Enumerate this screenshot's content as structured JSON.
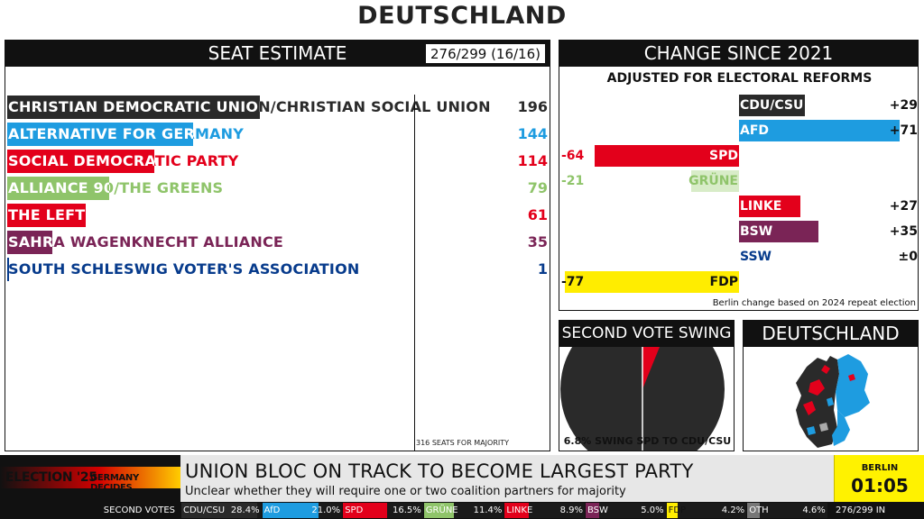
{
  "title": "DEUTSCHLAND",
  "seat_estimate": {
    "header": "SEAT ESTIMATE",
    "counter": "276/299 (16/16)",
    "majority_label": "316 SEATS FOR MAJORITY",
    "majority_seats": 316,
    "parties": [
      {
        "name": "CHRISTIAN DEMOCRATIC UNION/CHRISTIAN SOCIAL UNION",
        "seats": 196,
        "color": "#2a2a2a",
        "text_color": "#2a2a2a"
      },
      {
        "name": "ALTERNATIVE FOR GERMANY",
        "seats": 144,
        "color": "#1e9ce0",
        "text_color": "#1e9ce0"
      },
      {
        "name": "SOCIAL DEMOCRATIC PARTY",
        "seats": 114,
        "color": "#e3001b",
        "text_color": "#e3001b"
      },
      {
        "name": "ALLIANCE 90/THE GREENS",
        "seats": 79,
        "color": "#8fc46a",
        "text_color": "#8fc46a"
      },
      {
        "name": "THE LEFT",
        "seats": 61,
        "color": "#e3001b",
        "text_color": "#e3001b"
      },
      {
        "name": "SAHRA WAGENKNECHT ALLIANCE",
        "seats": 35,
        "color": "#7a2456",
        "text_color": "#7a2456"
      },
      {
        "name": "SOUTH SCHLESWIG VOTER'S ASSOCIATION",
        "seats": 1,
        "color": "#073b8c",
        "text_color": "#073b8c"
      }
    ]
  },
  "change": {
    "header": "CHANGE SINCE 2021",
    "subtitle": "ADJUSTED FOR ELECTORAL REFORMS",
    "note": "Berlin change based on 2024 repeat election",
    "parties": [
      {
        "name": "CDU/CSU",
        "value": 29,
        "label": "+29",
        "color": "#2a2a2a"
      },
      {
        "name": "AFD",
        "value": 71,
        "label": "+71",
        "color": "#1e9ce0"
      },
      {
        "name": "SPD",
        "value": -64,
        "label": "-64",
        "color": "#e3001b"
      },
      {
        "name": "GRÜNE",
        "value": -21,
        "label": "-21",
        "color": "#8fc46a"
      },
      {
        "name": "LINKE",
        "value": 27,
        "label": "+27",
        "color": "#e3001b"
      },
      {
        "name": "BSW",
        "value": 35,
        "label": "+35",
        "color": "#7a2456"
      },
      {
        "name": "SSW",
        "value": 0,
        "label": "±0",
        "color": "#073b8c"
      },
      {
        "name": "FDP",
        "value": -77,
        "label": "-77",
        "color": "#ffed00"
      }
    ]
  },
  "swing": {
    "header": "SECOND VOTE SWING",
    "caption": "6.8% SWING SPD TO CDU/CSU",
    "swing_pct": 6.8
  },
  "map": {
    "header": "DEUTSCHLAND"
  },
  "ticker": {
    "brand_election": "ELECTION '25",
    "brand_decides": "GERMANY DECIDES",
    "headline": "UNION BLOC ON TRACK TO BECOME LARGEST PARTY",
    "subheadline": "Unclear whether they will require one or two coalition partners for majority",
    "clock_city": "BERLIN",
    "clock_time": "01:05",
    "votes_label": "SECOND VOTES",
    "votes_count": "276/299 IN",
    "votes": [
      {
        "name": "CDU/CSU",
        "pct": "28.4%",
        "value": 28.4,
        "color": "#2a2a2a"
      },
      {
        "name": "AfD",
        "pct": "21.0%",
        "value": 21.0,
        "color": "#1e9ce0"
      },
      {
        "name": "SPD",
        "pct": "16.5%",
        "value": 16.5,
        "color": "#e3001b"
      },
      {
        "name": "GRÜNE",
        "pct": "11.4%",
        "value": 11.4,
        "color": "#8fc46a"
      },
      {
        "name": "LINKE",
        "pct": "8.9%",
        "value": 8.9,
        "color": "#e3001b"
      },
      {
        "name": "BSW",
        "pct": "5.0%",
        "value": 5.0,
        "color": "#7a2456"
      },
      {
        "name": "FDP",
        "pct": "4.2%",
        "value": 4.2,
        "color": "#ffed00"
      },
      {
        "name": "OTH",
        "pct": "4.6%",
        "value": 4.6,
        "color": "#777777"
      }
    ]
  }
}
